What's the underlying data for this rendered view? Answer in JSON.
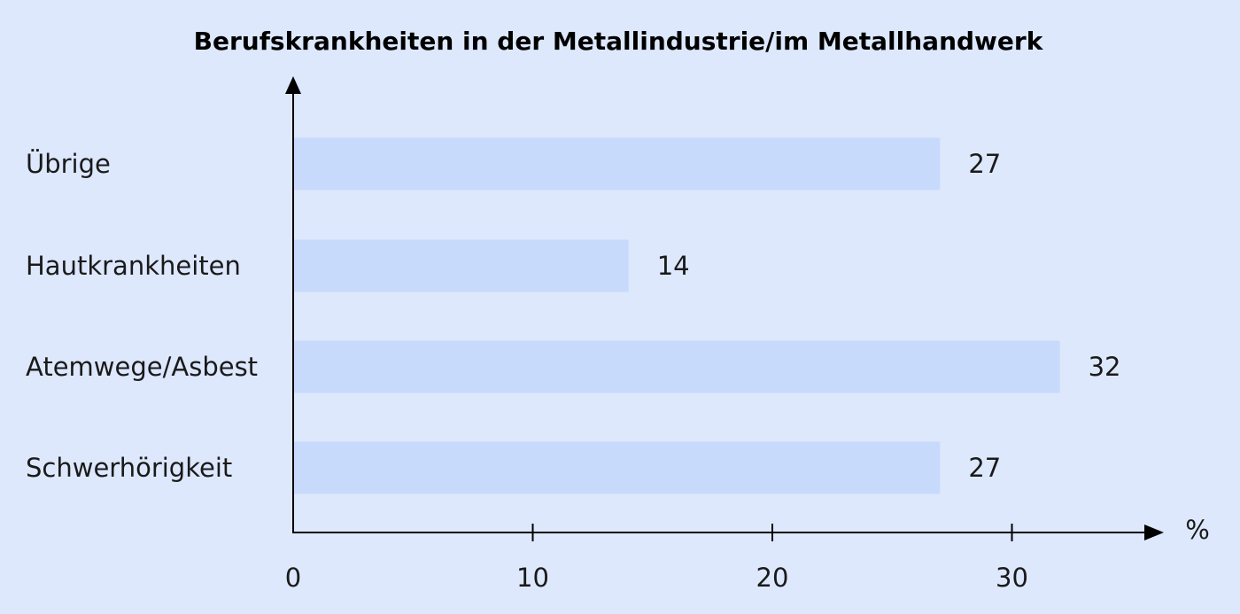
{
  "chart_data": {
    "type": "bar",
    "orientation": "horizontal",
    "title": "Berufskrankheiten in der Metallindustrie/im Metallhandwerk",
    "unit_label": "%",
    "categories": [
      "Übrige",
      "Hautkrankheiten",
      "Atemwege/Asbest",
      "Schwerhörigkeit"
    ],
    "values": [
      27,
      14,
      32,
      27
    ],
    "x_ticks": [
      0,
      10,
      20,
      30
    ],
    "xlim": [
      0,
      36
    ],
    "grid": false,
    "legend": "none",
    "colors": {
      "background": "#dde8fd",
      "bar": "#c8dafc",
      "axis": "#000000"
    }
  }
}
